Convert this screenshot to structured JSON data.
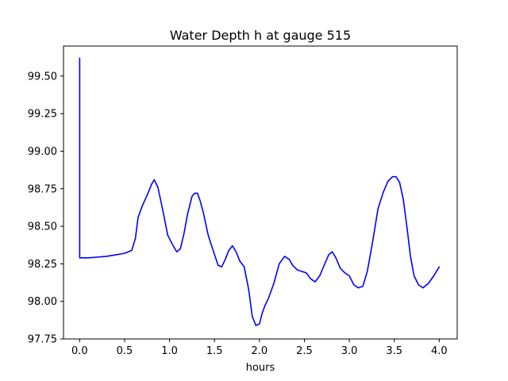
{
  "chart_data": {
    "type": "line",
    "title": "Water Depth h at gauge 515",
    "xlabel": "hours",
    "ylabel": "",
    "xlim": [
      -0.18,
      4.2
    ],
    "ylim": [
      97.75,
      99.7
    ],
    "xticks": [
      0.0,
      0.5,
      1.0,
      1.5,
      2.0,
      2.5,
      3.0,
      3.5,
      4.0
    ],
    "xtick_labels": [
      "0.0",
      "0.5",
      "1.0",
      "1.5",
      "2.0",
      "2.5",
      "3.0",
      "3.5",
      "4.0"
    ],
    "yticks": [
      97.75,
      98.0,
      98.25,
      98.5,
      98.75,
      99.0,
      99.25,
      99.5
    ],
    "ytick_labels": [
      "97.75",
      "98.00",
      "98.25",
      "98.50",
      "98.75",
      "99.00",
      "99.25",
      "99.50"
    ],
    "grid": false,
    "series": [
      {
        "color": "#0000ff",
        "x": [
          0.0,
          0.0,
          0.0,
          0.1,
          0.2,
          0.3,
          0.4,
          0.5,
          0.58,
          0.62,
          0.65,
          0.7,
          0.76,
          0.8,
          0.83,
          0.87,
          0.92,
          0.98,
          1.04,
          1.08,
          1.12,
          1.16,
          1.2,
          1.25,
          1.28,
          1.31,
          1.34,
          1.38,
          1.43,
          1.49,
          1.54,
          1.58,
          1.62,
          1.66,
          1.7,
          1.74,
          1.78,
          1.83,
          1.88,
          1.92,
          1.96,
          2.0,
          2.03,
          2.06,
          2.1,
          2.16,
          2.22,
          2.28,
          2.33,
          2.37,
          2.42,
          2.47,
          2.52,
          2.57,
          2.62,
          2.67,
          2.72,
          2.77,
          2.81,
          2.85,
          2.9,
          2.95,
          3.0,
          3.05,
          3.1,
          3.15,
          3.2,
          3.26,
          3.32,
          3.38,
          3.43,
          3.48,
          3.52,
          3.56,
          3.6,
          3.64,
          3.68,
          3.72,
          3.77,
          3.82,
          3.88,
          3.94,
          4.0
        ],
        "y": [
          99.62,
          98.29,
          98.29,
          98.29,
          98.295,
          98.3,
          98.31,
          98.32,
          98.34,
          98.42,
          98.56,
          98.64,
          98.72,
          98.78,
          98.81,
          98.76,
          98.62,
          98.44,
          98.37,
          98.33,
          98.35,
          98.45,
          98.58,
          98.7,
          98.72,
          98.72,
          98.67,
          98.58,
          98.44,
          98.33,
          98.24,
          98.23,
          98.28,
          98.34,
          98.37,
          98.33,
          98.27,
          98.23,
          98.08,
          97.9,
          97.84,
          97.85,
          97.92,
          97.97,
          98.02,
          98.12,
          98.25,
          98.3,
          98.28,
          98.24,
          98.21,
          98.2,
          98.19,
          98.15,
          98.13,
          98.17,
          98.24,
          98.31,
          98.33,
          98.29,
          98.22,
          98.19,
          98.17,
          98.11,
          98.09,
          98.1,
          98.2,
          98.4,
          98.62,
          98.73,
          98.8,
          98.83,
          98.83,
          98.79,
          98.68,
          98.5,
          98.3,
          98.17,
          98.11,
          98.09,
          98.12,
          98.17,
          98.23
        ]
      }
    ]
  }
}
